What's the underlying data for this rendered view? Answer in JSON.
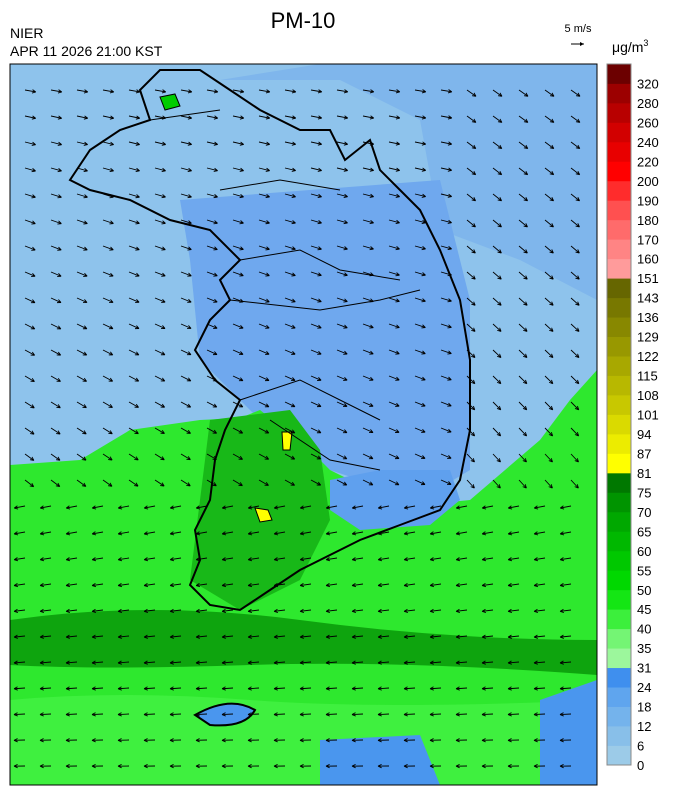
{
  "header": {
    "title": "PM-10",
    "agency": "NIER",
    "timestamp": "APR 11 2026 21:00 KST",
    "wind_scale": "5 m/s",
    "unit": "μg/m",
    "unit_exponent": "3"
  },
  "colorbar": {
    "labels": [
      0,
      6,
      12,
      18,
      24,
      31,
      35,
      40,
      45,
      50,
      55,
      60,
      65,
      70,
      75,
      81,
      87,
      94,
      101,
      108,
      115,
      122,
      129,
      136,
      143,
      151,
      160,
      170,
      180,
      190,
      200,
      220,
      240,
      260,
      280,
      320
    ],
    "colors": [
      "#9ccbe8",
      "#88bfe9",
      "#74b3ec",
      "#5fa5ee",
      "#3f8fee",
      "#9cf79c",
      "#74f574",
      "#3cef3c",
      "#14e614",
      "#00d800",
      "#00c800",
      "#00b800",
      "#00a800",
      "#009400",
      "#007800",
      "#ffff00",
      "#ecec00",
      "#dada00",
      "#c8c800",
      "#b8b800",
      "#a8a800",
      "#989800",
      "#888800",
      "#787800",
      "#666600",
      "#ff9b9b",
      "#ff8484",
      "#ff6b6b",
      "#ff5050",
      "#ff2c2c",
      "#ff0000",
      "#e80000",
      "#d20000",
      "#b80000",
      "#9c0000",
      "#6c0000"
    ]
  }
}
